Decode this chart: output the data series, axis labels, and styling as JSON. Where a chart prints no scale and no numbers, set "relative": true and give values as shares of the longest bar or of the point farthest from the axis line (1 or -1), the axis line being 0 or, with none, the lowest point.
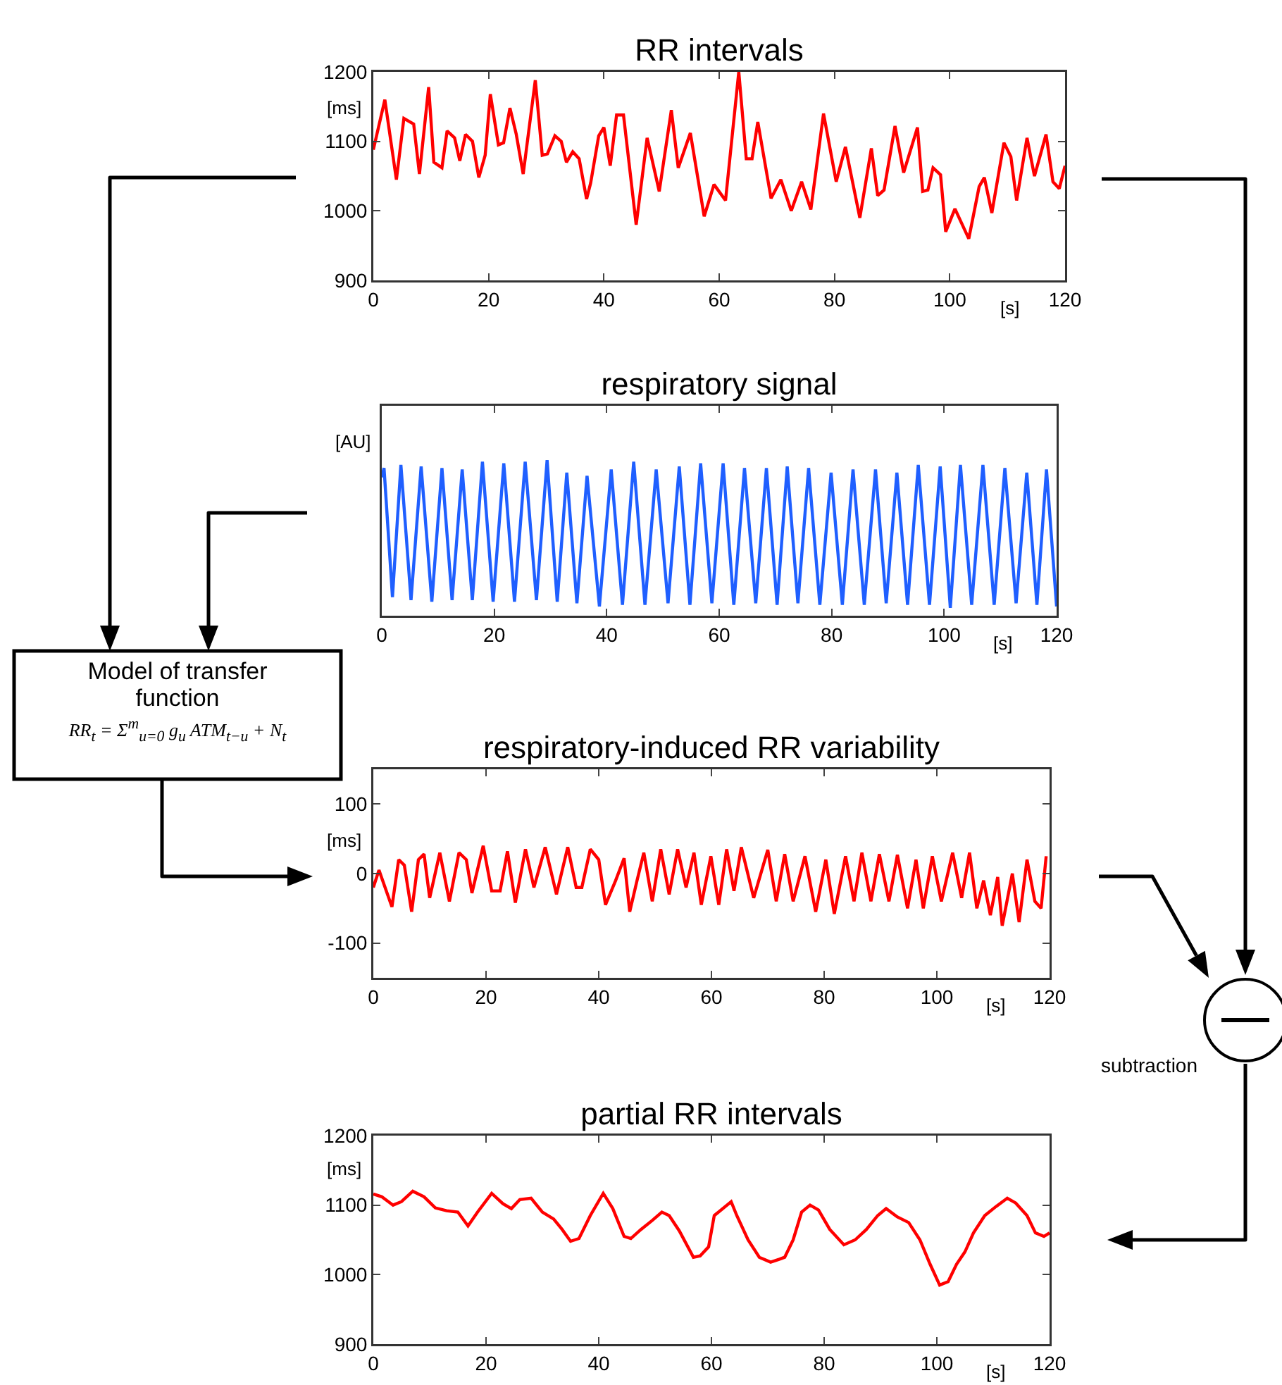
{
  "chart_data": [
    {
      "type": "line",
      "title": "RR intervals",
      "xlabel": "[s]",
      "ylabel": "[ms]",
      "color": "#ff0000",
      "x": [
        0,
        2,
        4,
        5.3,
        7,
        8,
        9.6,
        10.5,
        11.9,
        12.8,
        14.1,
        15,
        16,
        17.2,
        18.3,
        19.4,
        20.3,
        21.7,
        22.6,
        23.7,
        24.8,
        26,
        28.1,
        29.3,
        30.2,
        31.5,
        32.6,
        33.5,
        34.6,
        35.7,
        37,
        37.7,
        39.1,
        40,
        41.1,
        42.2,
        43.4,
        45.6,
        47.5,
        49.6,
        51.7,
        52.9,
        55,
        57.4,
        59.1,
        61.1,
        63.4,
        64.7,
        65.7,
        66.7,
        69,
        70.7,
        72.5,
        74.3,
        75.9,
        78.1,
        80.3,
        81.9,
        84.4,
        86.4,
        87.5,
        88.6,
        90.5,
        92,
        94.4,
        95.3,
        96.2,
        97.1,
        98.4,
        99.3,
        100.9,
        103.3,
        105.1,
        106,
        107.3,
        109.4,
        110.6,
        111.6,
        113.4,
        114.7,
        116.7,
        117.9,
        119,
        120
      ],
      "values": [
        1088,
        1160,
        1045,
        1133,
        1125,
        1053,
        1178,
        1070,
        1062,
        1115,
        1105,
        1072,
        1110,
        1100,
        1048,
        1080,
        1168,
        1095,
        1098,
        1148,
        1110,
        1053,
        1188,
        1080,
        1082,
        1108,
        1100,
        1070,
        1085,
        1075,
        1017,
        1040,
        1108,
        1120,
        1065,
        1138,
        1138,
        980,
        1105,
        1028,
        1145,
        1062,
        1112,
        992,
        1038,
        1015,
        1200,
        1075,
        1075,
        1128,
        1018,
        1045,
        1000,
        1042,
        1002,
        1140,
        1042,
        1092,
        990,
        1090,
        1022,
        1030,
        1122,
        1055,
        1120,
        1028,
        1030,
        1062,
        1052,
        970,
        1003,
        960,
        1035,
        1048,
        997,
        1098,
        1078,
        1015,
        1105,
        1050,
        1110,
        1042,
        1032,
        1065
      ],
      "xlim": [
        0,
        120
      ],
      "xticks": [
        0,
        20,
        40,
        60,
        80,
        100,
        120
      ],
      "ylim": [
        900,
        1200
      ],
      "yticks": [
        900,
        1000,
        1100,
        1200
      ]
    },
    {
      "type": "line",
      "title": "respiratory signal",
      "xlabel": "[s]",
      "ylabel": "[AU]",
      "color": "#1f5fff",
      "relative": true,
      "x": [
        0,
        0.4,
        1.9,
        3.4,
        5.2,
        7,
        8.9,
        10.7,
        12.5,
        14.3,
        16.1,
        17.9,
        19.8,
        21.7,
        23.6,
        25.5,
        27.5,
        29.4,
        31.2,
        32.9,
        34.7,
        36.5,
        38.7,
        40.8,
        42.8,
        44.8,
        46.8,
        48.8,
        50.9,
        52.9,
        54.8,
        56.7,
        58.7,
        60.7,
        62.6,
        64.5,
        66.5,
        68.4,
        70.3,
        72.1,
        74,
        75.9,
        77.9,
        79.9,
        81.9,
        83.8,
        85.8,
        87.8,
        89.7,
        91.6,
        93.5,
        95.4,
        97.4,
        99.3,
        101.1,
        102.9,
        104.9,
        106.9,
        108.9,
        110.8,
        112.8,
        114.7,
        116.5,
        118.2,
        120
      ],
      "values": [
        0.89,
        0.95,
        0.12,
        0.97,
        0.1,
        0.96,
        0.09,
        0.95,
        0.1,
        0.94,
        0.1,
        0.99,
        0.09,
        0.98,
        0.09,
        0.99,
        0.1,
        1,
        0.09,
        0.92,
        0.08,
        0.9,
        0.06,
        0.94,
        0.07,
        0.99,
        0.07,
        0.94,
        0.08,
        0.96,
        0.07,
        0.98,
        0.08,
        0.98,
        0.07,
        0.95,
        0.08,
        0.95,
        0.07,
        0.96,
        0.08,
        0.95,
        0.07,
        0.92,
        0.07,
        0.94,
        0.07,
        0.94,
        0.08,
        0.92,
        0.07,
        0.97,
        0.07,
        0.96,
        0.05,
        0.97,
        0.07,
        0.97,
        0.07,
        0.95,
        0.08,
        0.92,
        0.07,
        0.94,
        0.06
      ],
      "xlim": [
        0,
        120
      ],
      "xticks": [
        0,
        20,
        40,
        60,
        80,
        100,
        120
      ]
    },
    {
      "type": "line",
      "title": "respiratory-induced RR variability",
      "xlabel": "[s]",
      "ylabel": "[ms]",
      "color": "#ff0000",
      "annotations": [
        "Model of transfer function",
        "RR$_{t}$ = Σ$^{m}$$_{u=0}$ g$_{u}$ ATM$_{t−u}$ + N$_{t}$"
      ],
      "x": [
        0,
        1,
        3.3,
        4.5,
        5.5,
        6.8,
        8,
        9,
        10,
        11.8,
        13.5,
        15.2,
        16.5,
        17.5,
        19.5,
        21,
        22.5,
        23.8,
        25.2,
        27,
        28.5,
        30.5,
        32.5,
        34.5,
        36,
        37,
        38.5,
        40,
        41.2,
        43,
        44.5,
        45.5,
        46.8,
        48,
        49.5,
        51,
        52.5,
        54,
        55.5,
        56.9,
        58.2,
        59.9,
        61.3,
        62.7,
        64,
        65.3,
        67.5,
        70,
        71.5,
        73,
        74.5,
        76.6,
        78.5,
        80.3,
        81.8,
        83.8,
        85.3,
        86.7,
        88.3,
        89.8,
        91.5,
        93,
        94.8,
        96.3,
        97.6,
        99.2,
        100.8,
        102.8,
        104.4,
        105.8,
        107.1,
        108.3,
        109.5,
        110.8,
        111.6,
        113.4,
        114.6,
        116,
        117.4,
        118.5,
        119.4
      ],
      "values": [
        -20,
        5,
        -48,
        20,
        12,
        -55,
        20,
        28,
        -35,
        30,
        -40,
        30,
        20,
        -28,
        40,
        -25,
        -25,
        32,
        -42,
        35,
        -20,
        38,
        -30,
        38,
        -20,
        -20,
        35,
        20,
        -45,
        -10,
        22,
        -55,
        -10,
        30,
        -40,
        35,
        -30,
        35,
        -20,
        30,
        -45,
        25,
        -45,
        35,
        -25,
        38,
        -35,
        34,
        -40,
        28,
        -40,
        25,
        -55,
        20,
        -58,
        25,
        -40,
        30,
        -40,
        28,
        -40,
        27,
        -50,
        20,
        -50,
        25,
        -40,
        30,
        -35,
        30,
        -50,
        -10,
        -60,
        -5,
        -75,
        0,
        -70,
        20,
        -40,
        -50,
        25
      ],
      "xlim": [
        0,
        120
      ],
      "xticks": [
        0,
        20,
        40,
        60,
        80,
        100,
        120
      ],
      "ylim": [
        -150,
        150
      ],
      "yticks": [
        -100,
        0,
        100
      ]
    },
    {
      "type": "line",
      "title": "partial RR intervals",
      "xlabel": "[s]",
      "ylabel": "[ms]",
      "color": "#ff0000",
      "annotations": [
        "subtraction"
      ],
      "x": [
        0,
        1.5,
        3.5,
        5,
        7,
        9,
        11,
        13,
        15,
        16.8,
        18.5,
        21,
        23,
        24.5,
        26,
        28,
        30,
        32,
        33.5,
        35,
        36.5,
        38.5,
        40.8,
        42.5,
        44.5,
        45.7,
        47.5,
        49.5,
        51.2,
        52.5,
        54.3,
        56.8,
        58,
        59.5,
        60.5,
        63.5,
        64.5,
        66.5,
        68.5,
        70.5,
        72,
        73,
        74.5,
        76,
        77.5,
        79,
        81,
        83.5,
        85.5,
        87.5,
        89.5,
        91,
        93,
        95,
        97,
        98.8,
        100.5,
        102,
        103.5,
        105,
        106.5,
        108.5,
        110.5,
        112.5,
        114,
        116,
        117.5,
        119,
        120
      ],
      "values": [
        1116,
        1112,
        1100,
        1105,
        1120,
        1112,
        1096,
        1092,
        1090,
        1070,
        1090,
        1117,
        1102,
        1095,
        1108,
        1110,
        1090,
        1080,
        1065,
        1048,
        1052,
        1085,
        1117,
        1095,
        1055,
        1052,
        1065,
        1078,
        1090,
        1085,
        1063,
        1025,
        1027,
        1040,
        1085,
        1105,
        1085,
        1050,
        1025,
        1018,
        1022,
        1025,
        1050,
        1090,
        1100,
        1093,
        1065,
        1043,
        1050,
        1065,
        1085,
        1095,
        1083,
        1075,
        1050,
        1015,
        985,
        990,
        1015,
        1033,
        1060,
        1085,
        1098,
        1110,
        1103,
        1085,
        1060,
        1055,
        1060
      ],
      "xlim": [
        0,
        120
      ],
      "xticks": [
        0,
        20,
        40,
        60,
        80,
        100,
        120
      ],
      "ylim": [
        900,
        1200
      ],
      "yticks": [
        900,
        1000,
        1100,
        1200
      ]
    }
  ]
}
